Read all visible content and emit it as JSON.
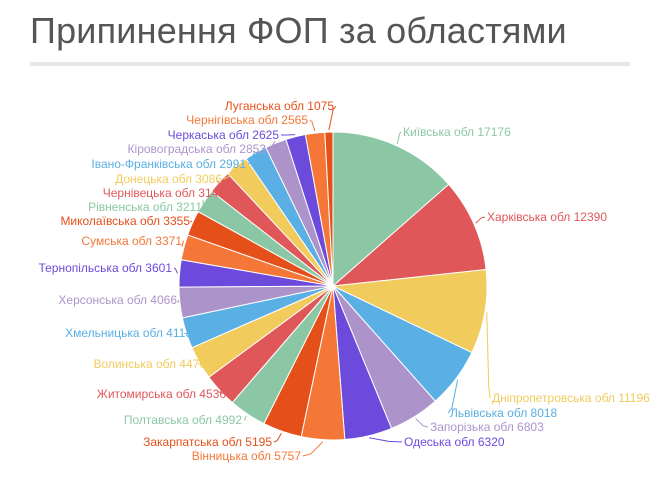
{
  "title": "Припинення ФОП за областями",
  "chart_data": {
    "type": "pie",
    "title": "Припинення ФОП за областями",
    "legend": "none",
    "slices": [
      {
        "label": "Київська обл",
        "value": 17176,
        "color": "#8bc7a4"
      },
      {
        "label": "Харківська обл",
        "value": 12390,
        "color": "#e0575a"
      },
      {
        "label": "Дніпропетровська обл",
        "value": 11196,
        "color": "#f1cb5b"
      },
      {
        "label": "Львівська обл",
        "value": 8018,
        "color": "#5aafe4"
      },
      {
        "label": "Запорізька обл",
        "value": 6803,
        "color": "#ac94cb"
      },
      {
        "label": "Одеська обл",
        "value": 6320,
        "color": "#6c4adc"
      },
      {
        "label": "Вінницька обл",
        "value": 5757,
        "color": "#f47738"
      },
      {
        "label": "Закарпатська обл",
        "value": 5195,
        "color": "#e5501a"
      },
      {
        "label": "Полтавська обл",
        "value": 4992,
        "color": "#8bc7a4"
      },
      {
        "label": "Житомирська обл",
        "value": 4536,
        "color": "#e0575a"
      },
      {
        "label": "Волинська обл",
        "value": 4476,
        "color": "#f1cb5b"
      },
      {
        "label": "Хмельницька обл",
        "value": 4113,
        "color": "#5aafe4"
      },
      {
        "label": "Херсонська обл",
        "value": 4066,
        "color": "#ac94cb"
      },
      {
        "label": "Тернопільська обл",
        "value": 3601,
        "color": "#6c4adc"
      },
      {
        "label": "Сумська обл",
        "value": 3371,
        "color": "#f47738"
      },
      {
        "label": "Миколаївська обл",
        "value": 3355,
        "color": "#e5501a"
      },
      {
        "label": "Рівненська обл",
        "value": 3211,
        "color": "#8bc7a4"
      },
      {
        "label": "Чернівецька обл",
        "value": 3140,
        "color": "#e0575a"
      },
      {
        "label": "Донецька обл",
        "value": 3086,
        "color": "#f1cb5b"
      },
      {
        "label": "Івано-Франківська обл",
        "value": 2991,
        "color": "#5aafe4"
      },
      {
        "label": "Кіровоградська обл",
        "value": 2853,
        "color": "#ac94cb"
      },
      {
        "label": "Черкаська обл",
        "value": 2625,
        "color": "#6c4adc"
      },
      {
        "label": "Чернігівська обл",
        "value": 2565,
        "color": "#f47738"
      },
      {
        "label": "Луганська обл",
        "value": 1075,
        "color": "#e5501a"
      }
    ]
  }
}
